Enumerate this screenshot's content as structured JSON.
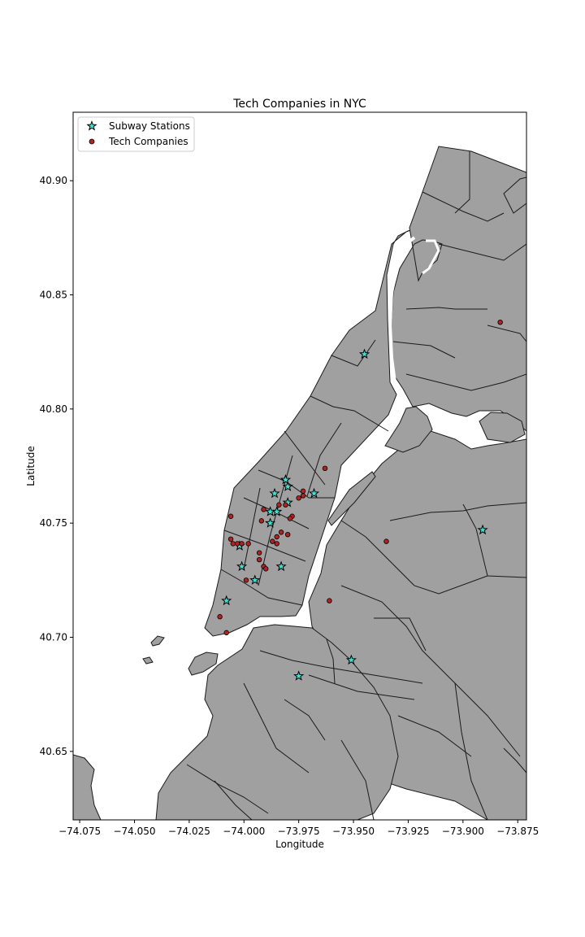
{
  "chart_data": {
    "type": "scatter",
    "title": "Tech Companies in NYC",
    "xlabel": "Longitude",
    "ylabel": "Latitude",
    "xlim": [
      -74.078,
      -73.871
    ],
    "ylim": [
      40.62,
      40.93
    ],
    "xticks": [
      -74.075,
      -74.05,
      -74.025,
      -74.0,
      -73.975,
      -73.95,
      -73.925,
      -73.9,
      -73.875
    ],
    "xtick_labels": [
      "−74.075",
      "−74.050",
      "−74.025",
      "−74.000",
      "−73.975",
      "−73.950",
      "−73.925",
      "−73.900",
      "−73.875"
    ],
    "yticks": [
      40.65,
      40.7,
      40.75,
      40.8,
      40.85,
      40.9
    ],
    "ytick_labels": [
      "40.65",
      "40.70",
      "40.75",
      "40.80",
      "40.85",
      "40.90"
    ],
    "legend": {
      "placement": "top-left",
      "entries": [
        "Subway Stations",
        "Tech Companies"
      ]
    },
    "colors": {
      "land": "#a0a0a0",
      "border": "#1a1a1a",
      "subway": "#40e0d0",
      "tech": "#b22222"
    },
    "series": [
      {
        "name": "Subway Stations",
        "marker": "star",
        "points": [
          [
            -73.945,
            40.824
          ],
          [
            -73.981,
            40.769
          ],
          [
            -73.986,
            40.763
          ],
          [
            -73.98,
            40.766
          ],
          [
            -73.968,
            40.763
          ],
          [
            -73.98,
            40.759
          ],
          [
            -73.985,
            40.755
          ],
          [
            -73.988,
            40.755
          ],
          [
            -73.988,
            40.75
          ],
          [
            -74.002,
            40.74
          ],
          [
            -74.001,
            40.731
          ],
          [
            -73.983,
            40.731
          ],
          [
            -73.995,
            40.725
          ],
          [
            -74.008,
            40.716
          ],
          [
            -73.891,
            40.747
          ],
          [
            -73.951,
            40.69
          ],
          [
            -73.975,
            40.683
          ]
        ]
      },
      {
        "name": "Tech Companies",
        "marker": "circle",
        "points": [
          [
            -73.883,
            40.838
          ],
          [
            -73.963,
            40.774
          ],
          [
            -73.973,
            40.764
          ],
          [
            -73.973,
            40.762
          ],
          [
            -73.975,
            40.761
          ],
          [
            -73.981,
            40.758
          ],
          [
            -73.984,
            40.758
          ],
          [
            -73.991,
            40.756
          ],
          [
            -73.978,
            40.753
          ],
          [
            -73.979,
            40.752
          ],
          [
            -74.006,
            40.753
          ],
          [
            -73.992,
            40.751
          ],
          [
            -73.983,
            40.746
          ],
          [
            -73.98,
            40.745
          ],
          [
            -73.985,
            40.744
          ],
          [
            -73.987,
            40.742
          ],
          [
            -73.985,
            40.741
          ],
          [
            -74.006,
            40.743
          ],
          [
            -74.005,
            40.741
          ],
          [
            -74.003,
            40.741
          ],
          [
            -74.001,
            40.741
          ],
          [
            -73.998,
            40.741
          ],
          [
            -73.993,
            40.737
          ],
          [
            -73.993,
            40.734
          ],
          [
            -73.991,
            40.731
          ],
          [
            -73.99,
            40.73
          ],
          [
            -73.999,
            40.725
          ],
          [
            -74.011,
            40.709
          ],
          [
            -74.008,
            40.702
          ],
          [
            -73.961,
            40.716
          ],
          [
            -73.935,
            40.742
          ]
        ]
      }
    ]
  }
}
